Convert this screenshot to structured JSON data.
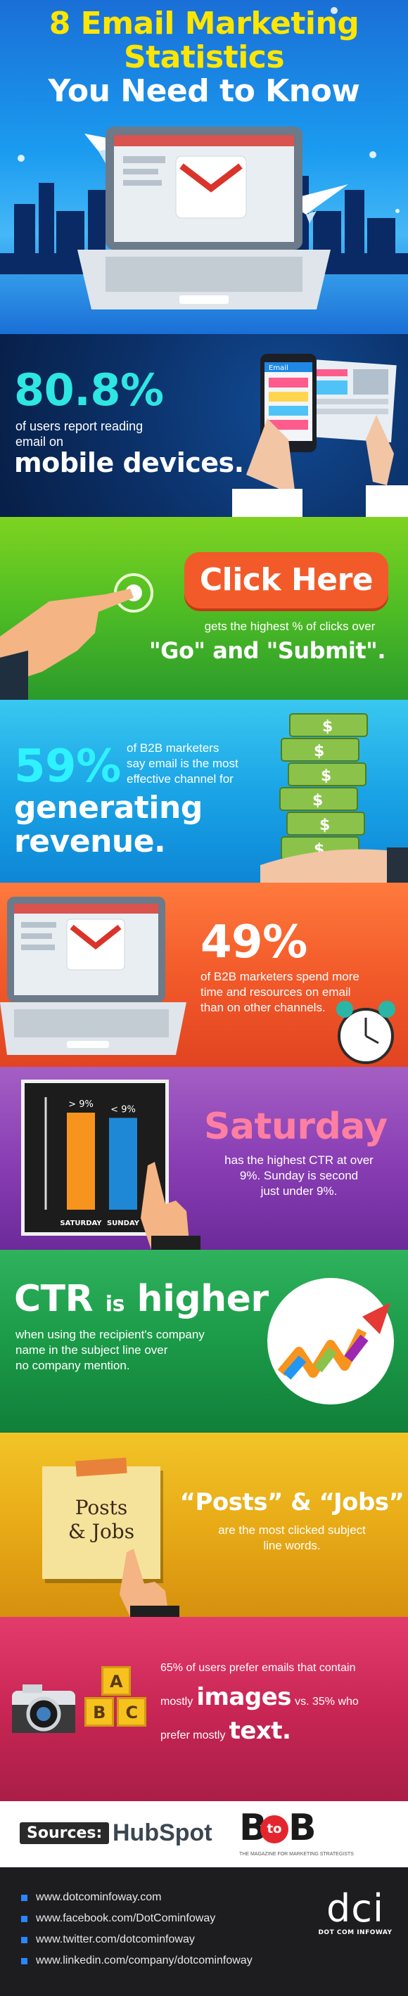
{
  "header": {
    "title_line1": "8 Email Marketing",
    "title_line2": "Statistics",
    "title_line3": "You Need to Know"
  },
  "stat1": {
    "value": "80.8%",
    "text_line1": "of users report reading",
    "text_line2": "email on",
    "emphasis": "mobile devices.",
    "phone_label": "Email"
  },
  "stat2": {
    "button_label": "Click Here",
    "text": "gets the highest % of clicks over",
    "emphasis": "\"Go\" and \"Submit\"."
  },
  "stat3": {
    "value": "59%",
    "text_line1": "of B2B marketers",
    "text_line2": "say email is the most",
    "text_line3": "effective channel for",
    "emphasis_line1": "generating",
    "emphasis_line2": "revenue."
  },
  "stat4": {
    "value": "49%",
    "text_line1": "of B2B marketers spend more",
    "text_line2": "time and resources on email",
    "text_line3": "than on other channels."
  },
  "stat5": {
    "value": "Saturday",
    "text_line1": "has the highest CTR at over",
    "text_line2": "9%. Sunday is second",
    "text_line3": "just under 9%.",
    "chart_data": {
      "type": "bar",
      "categories": [
        "SATURDAY",
        "SUNDAY"
      ],
      "data_labels": [
        "> 9%",
        "< 9%"
      ],
      "values": [
        9.3,
        8.8
      ],
      "colors": [
        "#f7941d",
        "#1e88d6"
      ]
    }
  },
  "stat6": {
    "emphasis_a": "CTR",
    "emphasis_is": "is",
    "emphasis_b": "higher",
    "text_line1": "when using the recipient's company",
    "text_line2": "name in the subject line over",
    "text_line3": "no company mention."
  },
  "stat7": {
    "note_line1": "Posts",
    "note_line2": "& Jobs",
    "emphasis": "“Posts” & “Jobs”",
    "text_line1": "are the most clicked subject",
    "text_line2": "line words."
  },
  "stat8": {
    "text_line1": "65% of users prefer emails that contain",
    "text_pre": "mostly",
    "emphasis_images": "images",
    "text_mid": "vs. 35% who",
    "text_pre2": "prefer mostly",
    "emphasis_text": "text.",
    "block_letters": [
      "A",
      "B",
      "C"
    ]
  },
  "sources": {
    "label": "Sources:",
    "hubspot": "HubSpot",
    "b2b_b": "B",
    "b2b_to": "to",
    "b2b_b2": "B",
    "b2b_tagline": "THE MAGAZINE FOR MARKETING STRATEGISTS"
  },
  "footer": {
    "links": [
      "www.dotcominfoway.com",
      "www.facebook.com/DotCominfoway",
      "www.twitter.com/dotcominfoway",
      "www.linkedin.com/company/dotcominfoway"
    ],
    "logo": "dci",
    "logo_tagline": "DOT COM INFOWAY"
  },
  "colors": {
    "accent_yellow": "#ffe600",
    "accent_cyan": "#2ee6e2",
    "button_orange": "#f25a2a"
  }
}
